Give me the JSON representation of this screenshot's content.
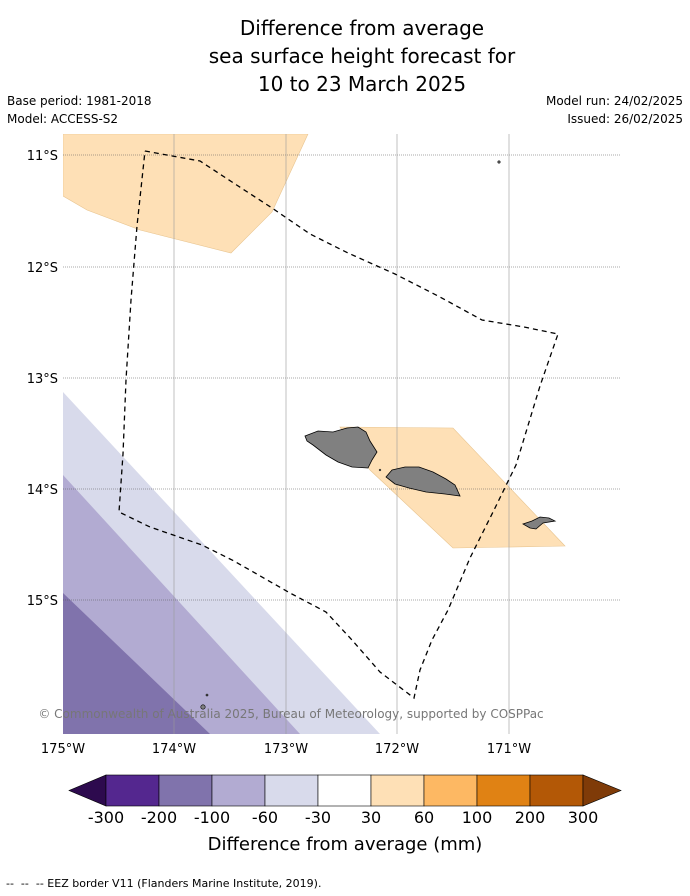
{
  "title": {
    "line1": "Difference from average",
    "line2": "sea surface height forecast for",
    "line3": "10 to 23 March 2025"
  },
  "meta": {
    "base_period": "Base period: 1981-2018",
    "model": "Model: ACCESS-S2",
    "model_run": "Model run: 24/02/2025",
    "issued": "Issued: 26/02/2025"
  },
  "map": {
    "lat_labels": [
      "11°S",
      "12°S",
      "13°S",
      "14°S",
      "15°S"
    ],
    "lon_labels": [
      "175°W",
      "174°W",
      "173°W",
      "172°W",
      "171°W"
    ],
    "copyright": "© Commonwealth of Australia 2025, Bureau of Meteorology, supported by COSPPac"
  },
  "colorbar": {
    "label": "Difference from average (mm)",
    "ticks": [
      "-300",
      "-200",
      "-100",
      "-60",
      "-30",
      "30",
      "60",
      "100",
      "200",
      "300"
    ],
    "colors": {
      "under": "#2d0a4e",
      "bins": [
        "#54278f",
        "#8073ac",
        "#b2abd2",
        "#d8daeb",
        "#ffffff",
        "#fee0b6",
        "#fdb863",
        "#e08214",
        "#b35806"
      ],
      "over": "#7f3b08",
      "land": "#808080"
    }
  },
  "footer": {
    "legend_text": "-- EEZ border V11 (Flanders Marine Institute, 2019)."
  }
}
